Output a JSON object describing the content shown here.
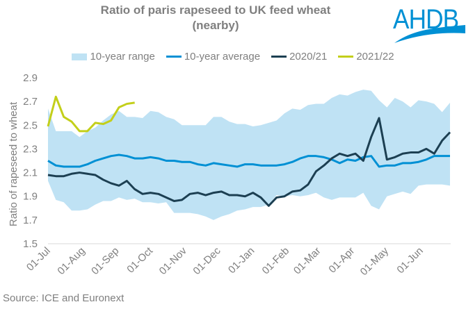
{
  "logo": {
    "text": "AHDB",
    "color": "#0090d4"
  },
  "source": "Source: ICE and Euronext",
  "chart_data": {
    "type": "line",
    "title": "Ratio of paris rapeseed to UK feed wheat (nearby)",
    "title_lines": [
      "Ratio of paris rapeseed to UK feed wheat",
      "(nearby)"
    ],
    "xlabel": "",
    "ylabel": "Ratio of rapeseed to wheat",
    "ylim": [
      1.5,
      2.9
    ],
    "yticks": [
      "1.5",
      "1.7",
      "1.9",
      "2.1",
      "2.3",
      "2.5",
      "2.7",
      "2.9"
    ],
    "ytick_values": [
      1.5,
      1.7,
      1.9,
      2.1,
      2.3,
      2.5,
      2.7,
      2.9
    ],
    "x_unit": "weeks from 01-Jul",
    "xlim": [
      0,
      51
    ],
    "xticks": [
      {
        "label": "01-Jul",
        "week": 0
      },
      {
        "label": "01-Aug",
        "week": 4.4
      },
      {
        "label": "01-Sep",
        "week": 8.7
      },
      {
        "label": "01-Oct",
        "week": 13.0
      },
      {
        "label": "01-Nov",
        "week": 17.3
      },
      {
        "label": "01-Dec",
        "week": 21.6
      },
      {
        "label": "01-Jan",
        "week": 25.9
      },
      {
        "label": "01-Feb",
        "week": 30.3
      },
      {
        "label": "01-Mar",
        "week": 34.3
      },
      {
        "label": "01-Apr",
        "week": 38.6
      },
      {
        "label": "01-May",
        "week": 42.9
      },
      {
        "label": "01-Jun",
        "week": 47.3
      }
    ],
    "grid": false,
    "legend_position": "top",
    "legend": [
      "10-year range",
      "10-year average",
      "2020/21",
      "2021/22"
    ],
    "colors": {
      "range": "#bfe2f4",
      "average": "#0090d4",
      "2020/21": "#1c3f52",
      "2021/22": "#c3cf1a",
      "axis": "#d9d9d9",
      "text": "#7f7f7f"
    },
    "range": {
      "name": "10-year range",
      "upper": [
        2.64,
        2.45,
        2.45,
        2.45,
        2.4,
        2.45,
        2.48,
        2.54,
        2.59,
        2.62,
        2.57,
        2.57,
        2.56,
        2.62,
        2.61,
        2.57,
        2.55,
        2.5,
        2.5,
        2.5,
        2.5,
        2.57,
        2.57,
        2.53,
        2.51,
        2.51,
        2.49,
        2.5,
        2.52,
        2.54,
        2.6,
        2.64,
        2.63,
        2.67,
        2.68,
        2.68,
        2.73,
        2.76,
        2.75,
        2.78,
        2.8,
        2.79,
        2.71,
        2.65,
        2.73,
        2.7,
        2.65,
        2.71,
        2.7,
        2.68,
        2.61,
        2.69
      ],
      "lower": [
        2.03,
        1.87,
        1.85,
        1.78,
        1.78,
        1.79,
        1.83,
        1.86,
        1.86,
        1.89,
        1.87,
        1.88,
        1.85,
        1.85,
        1.84,
        1.85,
        1.76,
        1.76,
        1.76,
        1.75,
        1.73,
        1.7,
        1.73,
        1.75,
        1.78,
        1.79,
        1.81,
        1.81,
        1.83,
        1.91,
        1.9,
        1.91,
        1.9,
        1.91,
        1.93,
        1.89,
        1.87,
        1.89,
        1.89,
        1.89,
        1.93,
        1.82,
        1.79,
        1.9,
        1.92,
        1.94,
        1.92,
        1.99,
        2.0,
        2.0,
        2.0,
        1.99
      ]
    },
    "series": [
      {
        "name": "10-year average",
        "values": [
          2.2,
          2.16,
          2.15,
          2.15,
          2.15,
          2.17,
          2.2,
          2.22,
          2.24,
          2.25,
          2.24,
          2.22,
          2.22,
          2.23,
          2.22,
          2.2,
          2.2,
          2.19,
          2.19,
          2.17,
          2.16,
          2.18,
          2.17,
          2.16,
          2.15,
          2.17,
          2.17,
          2.16,
          2.16,
          2.16,
          2.17,
          2.19,
          2.22,
          2.24,
          2.24,
          2.23,
          2.21,
          2.18,
          2.21,
          2.2,
          2.23,
          2.24,
          2.15,
          2.16,
          2.16,
          2.18,
          2.18,
          2.19,
          2.21,
          2.24,
          2.24,
          2.24
        ]
      },
      {
        "name": "2020/21",
        "values": [
          2.08,
          2.07,
          2.07,
          2.09,
          2.1,
          2.09,
          2.08,
          2.04,
          2.01,
          1.99,
          2.03,
          1.96,
          1.92,
          1.93,
          1.92,
          1.89,
          1.86,
          1.87,
          1.92,
          1.93,
          1.91,
          1.93,
          1.94,
          1.91,
          1.91,
          1.9,
          1.93,
          1.89,
          1.82,
          1.89,
          1.9,
          1.94,
          1.95,
          2.0,
          2.11,
          2.16,
          2.22,
          2.26,
          2.24,
          2.26,
          2.2,
          2.4,
          2.56,
          2.21,
          2.23,
          2.26,
          2.27,
          2.27,
          2.3,
          2.26,
          2.37,
          2.44
        ]
      },
      {
        "name": "2021/22",
        "values": [
          2.49,
          2.74,
          2.57,
          2.53,
          2.45,
          2.45,
          2.52,
          2.51,
          2.54,
          2.65,
          2.68,
          2.69
        ]
      }
    ]
  }
}
